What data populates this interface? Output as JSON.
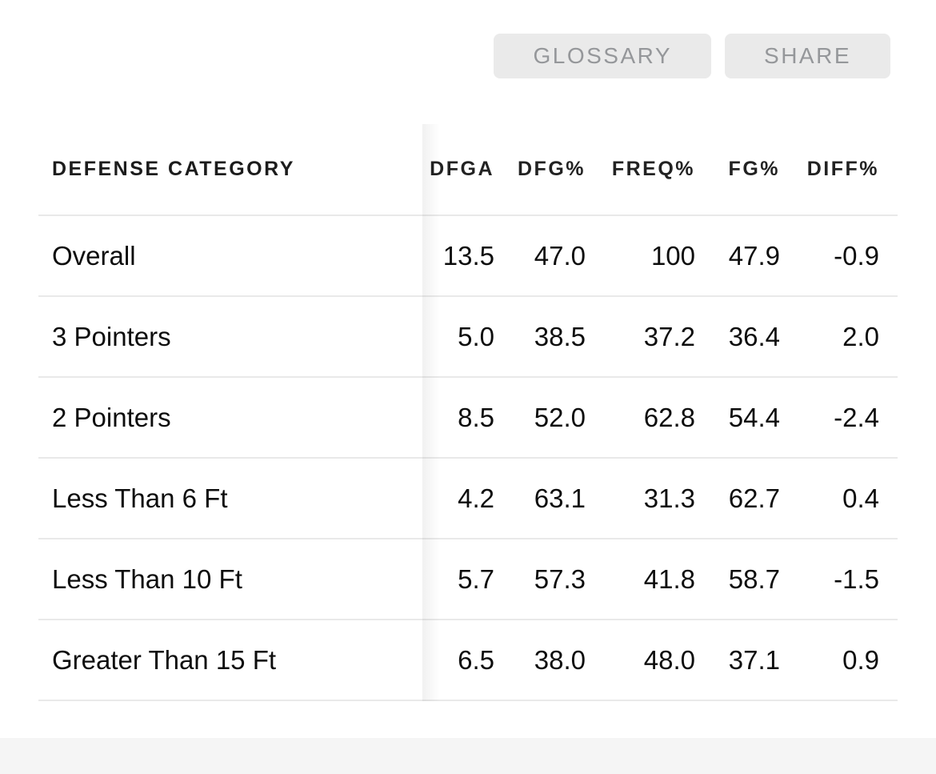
{
  "toolbar": {
    "glossary_label": "GLOSSARY",
    "share_label": "SHARE"
  },
  "table": {
    "columns": {
      "category": "DEFENSE CATEGORY",
      "dfga": "DFGA",
      "dfg": "DFG%",
      "freq": "FREQ%",
      "fg": "FG%",
      "diff": "DIFF%"
    },
    "rows": [
      {
        "category": "Overall",
        "dfga": "13.5",
        "dfg": "47.0",
        "freq": "100",
        "fg": "47.9",
        "diff": "-0.9"
      },
      {
        "category": "3 Pointers",
        "dfga": "5.0",
        "dfg": "38.5",
        "freq": "37.2",
        "fg": "36.4",
        "diff": "2.0"
      },
      {
        "category": "2 Pointers",
        "dfga": "8.5",
        "dfg": "52.0",
        "freq": "62.8",
        "fg": "54.4",
        "diff": "-2.4"
      },
      {
        "category": "Less Than 6 Ft",
        "dfga": "4.2",
        "dfg": "63.1",
        "freq": "31.3",
        "fg": "62.7",
        "diff": "0.4"
      },
      {
        "category": "Less Than 10 Ft",
        "dfga": "5.7",
        "dfg": "57.3",
        "freq": "41.8",
        "fg": "58.7",
        "diff": "-1.5"
      },
      {
        "category": "Greater Than 15 Ft",
        "dfga": "6.5",
        "dfg": "38.0",
        "freq": "48.0",
        "fg": "37.1",
        "diff": "0.9"
      }
    ]
  },
  "colors": {
    "button_bg": "#eaeaea",
    "button_text": "#95979a",
    "row_border": "#e9e9e9",
    "header_text": "#1c1c1c",
    "body_text": "#0d0d0d",
    "footer_strip": "#f5f5f5"
  }
}
